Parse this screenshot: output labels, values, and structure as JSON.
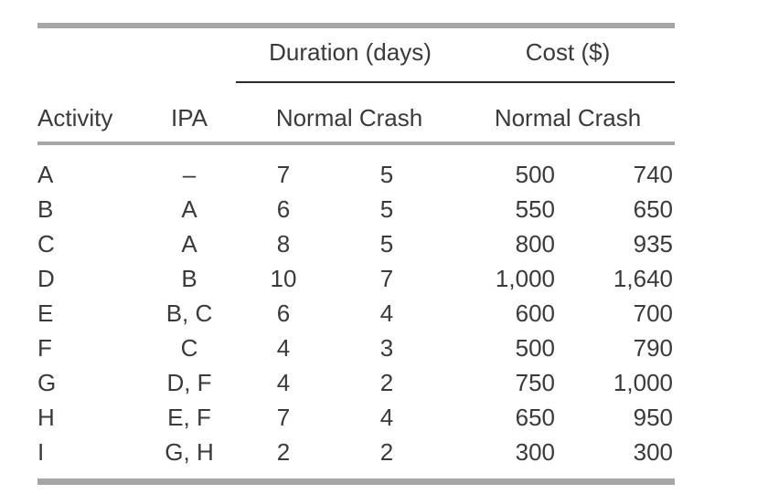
{
  "headers": {
    "duration_group": "Duration (days)",
    "cost_group": "Cost ($)",
    "activity": "Activity",
    "ipa": "IPA",
    "duration_sub": "Normal Crash",
    "cost_sub": "Normal Crash"
  },
  "rows": [
    {
      "activity": "A",
      "ipa": "–",
      "dur_normal": "7",
      "dur_crash": "5",
      "cost_normal": "500",
      "cost_crash": "740"
    },
    {
      "activity": "B",
      "ipa": "A",
      "dur_normal": "6",
      "dur_crash": "5",
      "cost_normal": "550",
      "cost_crash": "650"
    },
    {
      "activity": "C",
      "ipa": "A",
      "dur_normal": "8",
      "dur_crash": "5",
      "cost_normal": "800",
      "cost_crash": "935"
    },
    {
      "activity": "D",
      "ipa": "B",
      "dur_normal": "10",
      "dur_crash": "7",
      "cost_normal": "1,000",
      "cost_crash": "1,640"
    },
    {
      "activity": "E",
      "ipa": "B, C",
      "dur_normal": "6",
      "dur_crash": "4",
      "cost_normal": "600",
      "cost_crash": "700"
    },
    {
      "activity": "F",
      "ipa": "C",
      "dur_normal": "4",
      "dur_crash": "3",
      "cost_normal": "500",
      "cost_crash": "790"
    },
    {
      "activity": "G",
      "ipa": "D, F",
      "dur_normal": "4",
      "dur_crash": "2",
      "cost_normal": "750",
      "cost_crash": "1,000"
    },
    {
      "activity": "H",
      "ipa": "E, F",
      "dur_normal": "7",
      "dur_crash": "4",
      "cost_normal": "650",
      "cost_crash": "950"
    },
    {
      "activity": "I",
      "ipa": "G, H",
      "dur_normal": "2",
      "dur_crash": "2",
      "cost_normal": "300",
      "cost_crash": "300"
    }
  ]
}
